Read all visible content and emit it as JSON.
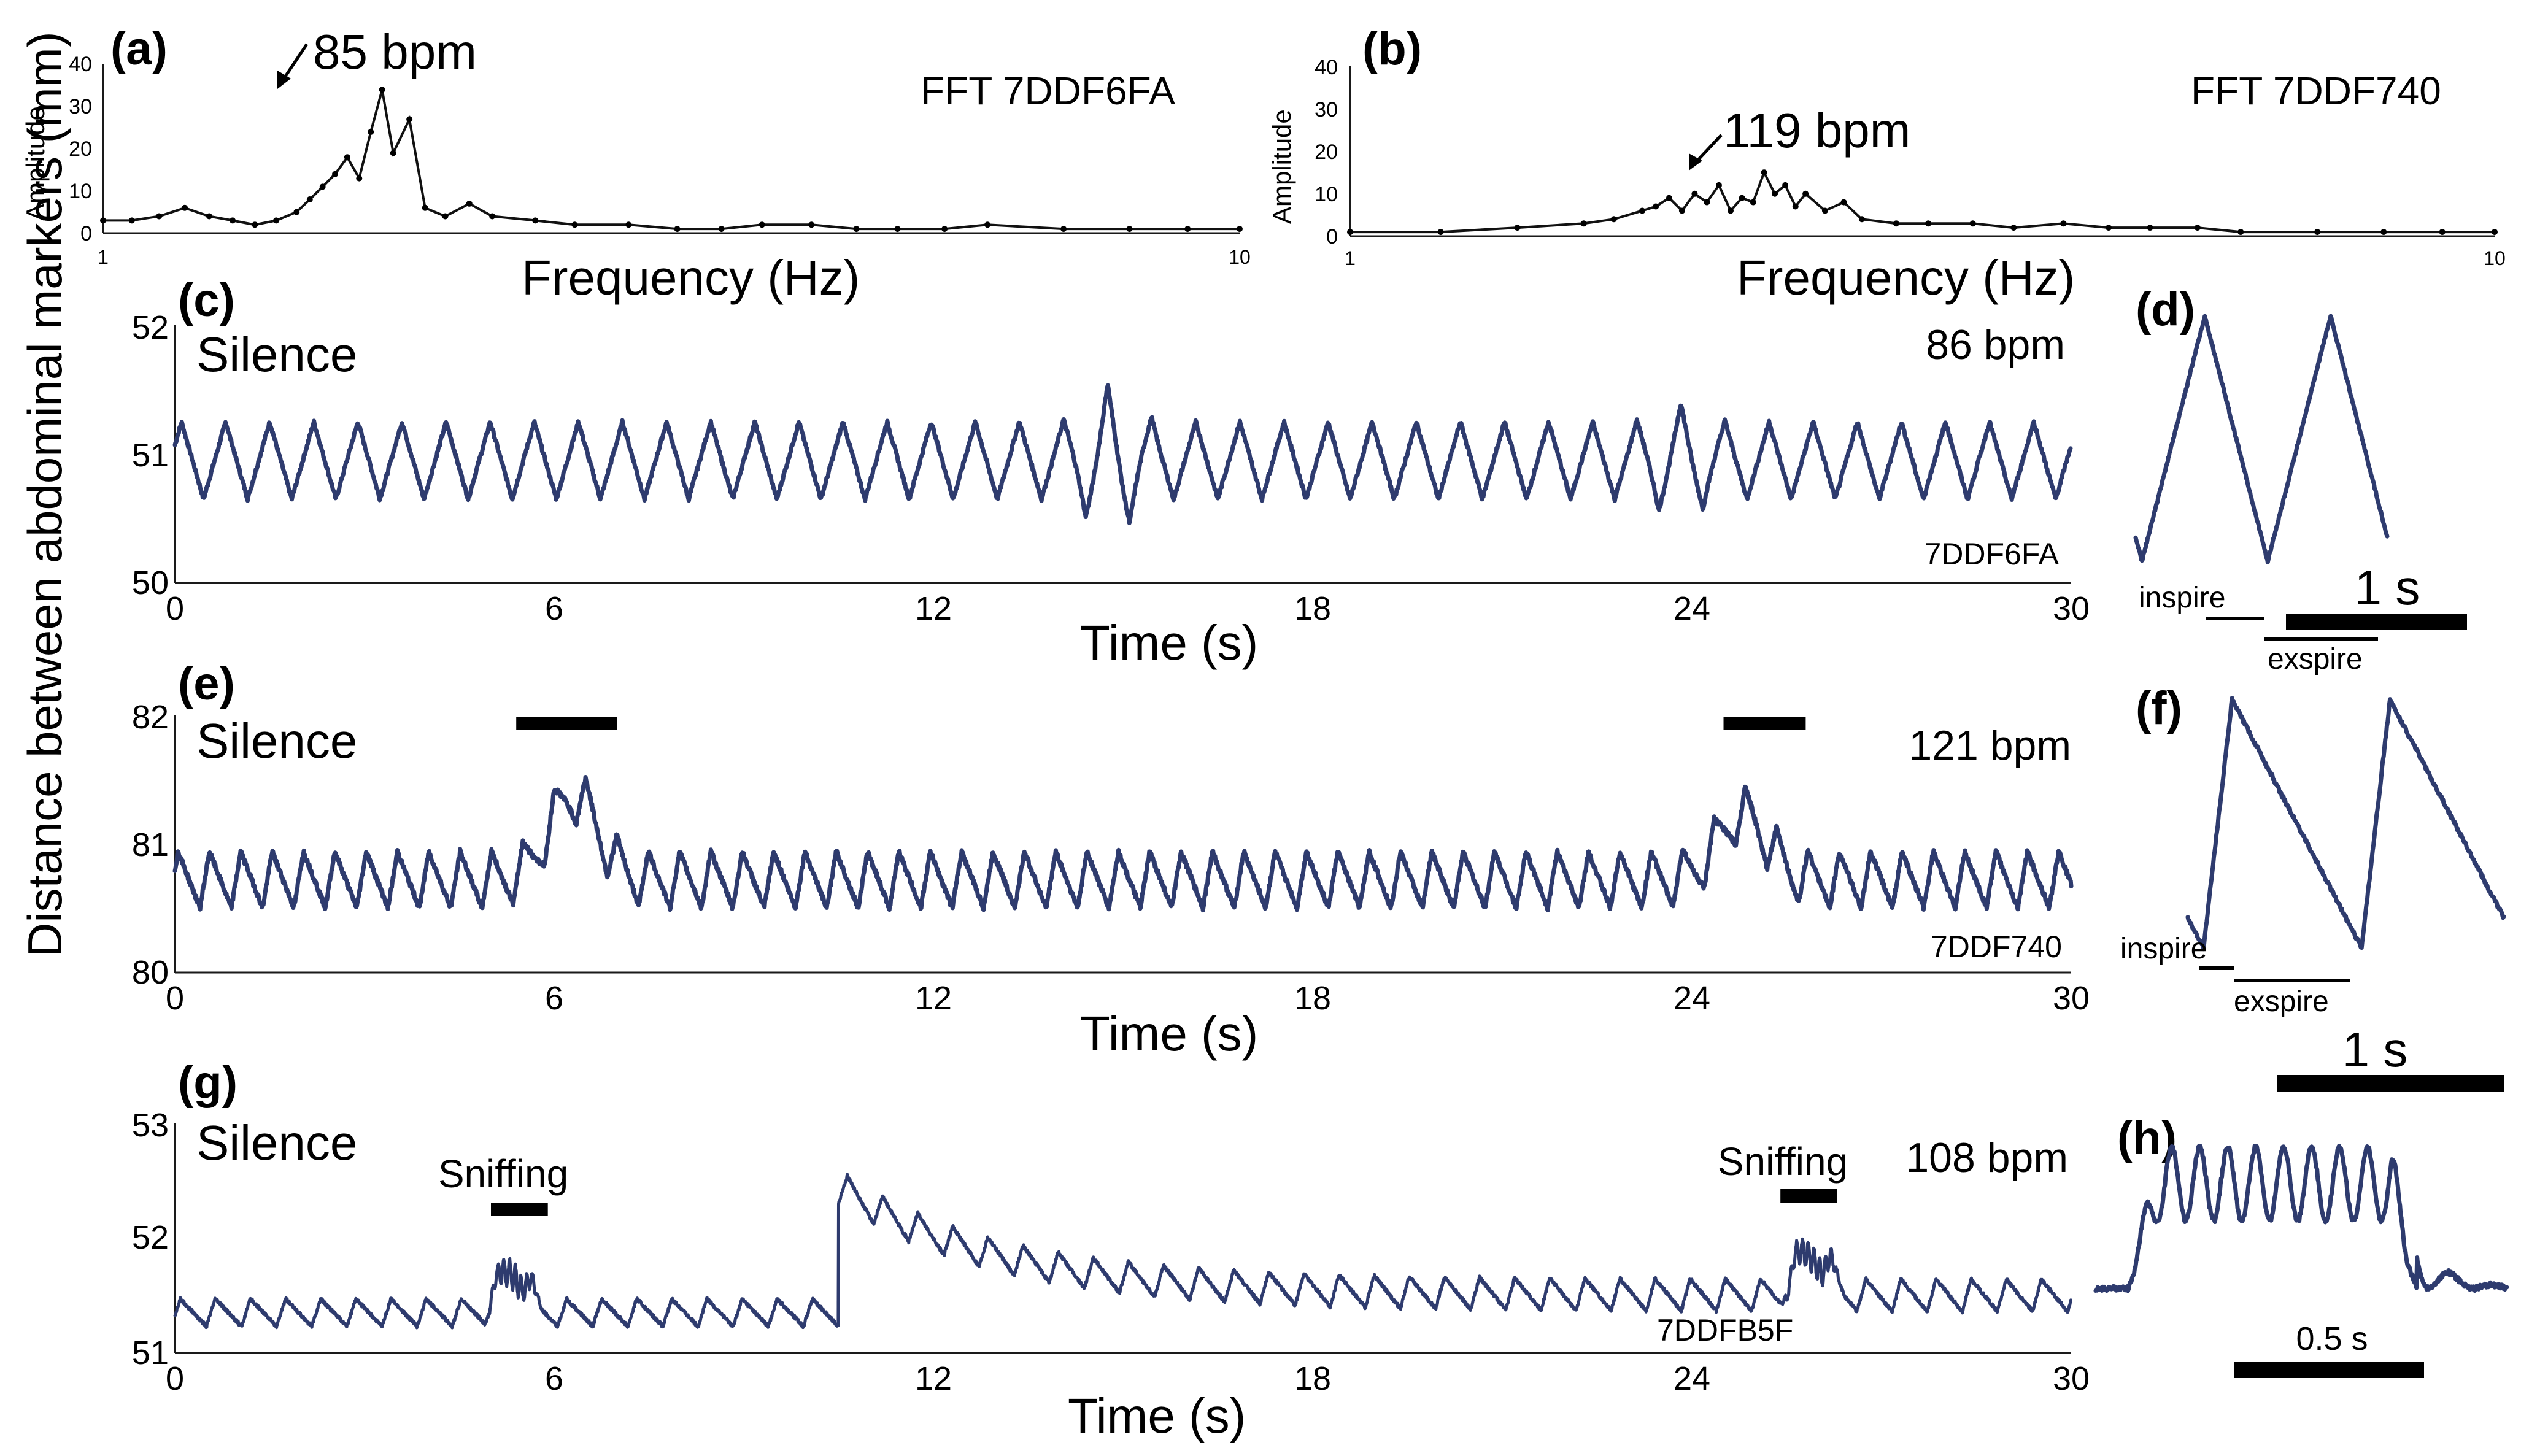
{
  "figure": {
    "ylabel_shared": "Distance between abdominal markers (mm)"
  },
  "chart_data": [
    {
      "panel": "(a)",
      "type": "line",
      "title": "FFT 7DDF6FA",
      "xlabel": "Frequency (Hz)",
      "ylabel": "Amplitude",
      "xscale": "log",
      "xlim": [
        1,
        10
      ],
      "ylim": [
        0,
        40
      ],
      "xticks": [
        "1",
        "10"
      ],
      "yticks": [
        "0",
        "10",
        "20",
        "30",
        "40"
      ],
      "annotation": "85 bpm",
      "x": [
        1.0,
        1.06,
        1.12,
        1.18,
        1.24,
        1.3,
        1.36,
        1.42,
        1.48,
        1.52,
        1.56,
        1.6,
        1.64,
        1.68,
        1.72,
        1.76,
        1.8,
        1.86,
        1.92,
        2.0,
        2.1,
        2.2,
        2.4,
        2.6,
        2.9,
        3.2,
        3.5,
        3.8,
        4.2,
        4.6,
        5.0,
        5.5,
        6.0,
        7.0,
        8.0,
        9.0,
        10.0
      ],
      "y": [
        3,
        3,
        4,
        6,
        4,
        3,
        2,
        3,
        5,
        8,
        11,
        14,
        18,
        13,
        24,
        34,
        19,
        27,
        6,
        4,
        7,
        4,
        3,
        2,
        2,
        1,
        1,
        2,
        2,
        1,
        1,
        1,
        2,
        1,
        1,
        1,
        1
      ]
    },
    {
      "panel": "(b)",
      "type": "line",
      "title": "FFT 7DDF740",
      "xlabel": "Frequency (Hz)",
      "ylabel": "Amplitude",
      "xscale": "log",
      "xlim": [
        1,
        10
      ],
      "ylim": [
        0,
        40
      ],
      "xticks": [
        "1",
        "10"
      ],
      "yticks": [
        "0",
        "10",
        "20",
        "30",
        "40"
      ],
      "annotation": "119 bpm",
      "x": [
        1.0,
        1.2,
        1.4,
        1.6,
        1.7,
        1.8,
        1.85,
        1.9,
        1.95,
        2.0,
        2.05,
        2.1,
        2.15,
        2.2,
        2.25,
        2.3,
        2.35,
        2.4,
        2.45,
        2.5,
        2.6,
        2.7,
        2.8,
        3.0,
        3.2,
        3.5,
        3.8,
        4.2,
        4.6,
        5.0,
        5.5,
        6.0,
        7.0,
        8.0,
        9.0,
        10.0
      ],
      "y": [
        1,
        1,
        2,
        3,
        4,
        6,
        7,
        9,
        6,
        10,
        8,
        12,
        6,
        9,
        8,
        15,
        10,
        12,
        7,
        10,
        6,
        8,
        4,
        3,
        3,
        3,
        2,
        3,
        2,
        2,
        2,
        1,
        1,
        1,
        1,
        1
      ],
      "peak_bpm": 119
    },
    {
      "panel": "(c)",
      "type": "line",
      "label": "Silence",
      "rate": "86 bpm",
      "id": "7DDF6FA",
      "xlabel": "Time (s)",
      "xlim": [
        0,
        30
      ],
      "ylim": [
        50,
        52
      ],
      "xticks": [
        "0",
        "6",
        "12",
        "18",
        "24",
        "30"
      ],
      "yticks": [
        "50",
        "51",
        "52"
      ],
      "rate_bpm": 86,
      "baseline": 50.95,
      "amplitude": 0.3,
      "emphasis": [
        [
          14.8,
          0.3
        ],
        [
          23.8,
          0.15
        ]
      ]
    },
    {
      "panel": "(d)",
      "type": "line",
      "scalebar": "1 s",
      "phase_labels": [
        "inspire",
        "exspire"
      ],
      "cycles": 2,
      "duration_s": 1.5
    },
    {
      "panel": "(e)",
      "type": "line",
      "label": "Silence",
      "rate": "121 bpm",
      "id": "7DDF740",
      "xlabel": "Time (s)",
      "xlim": [
        0,
        30
      ],
      "ylim": [
        80,
        82
      ],
      "xticks": [
        "0",
        "6",
        "12",
        "18",
        "24",
        "30"
      ],
      "yticks": [
        "80",
        "81",
        "82"
      ],
      "rate_bpm": 121,
      "baseline": 80.72,
      "amplitude": 0.22,
      "bumps": [
        [
          6.3,
          0.65
        ],
        [
          24.8,
          0.5
        ]
      ],
      "marker_bars_s": [
        [
          5.4,
          7.0
        ],
        [
          24.5,
          25.8
        ]
      ]
    },
    {
      "panel": "(f)",
      "type": "line",
      "scalebar": "1 s",
      "phase_labels": [
        "inspire",
        "exspire"
      ],
      "cycles": 2,
      "duration_s": 1.4
    },
    {
      "panel": "(g)",
      "type": "line",
      "label": "Silence",
      "rate": "108 bpm",
      "id": "7DDFB5F",
      "xlabel": "Time (s)",
      "xlim": [
        0,
        30
      ],
      "ylim": [
        51,
        53
      ],
      "xticks": [
        "0",
        "6",
        "12",
        "18",
        "24",
        "30"
      ],
      "yticks": [
        "51",
        "52",
        "53"
      ],
      "rate_bpm": 108,
      "event_labels": [
        "Sniffing",
        "Sniffing"
      ],
      "sniff_windows_s": [
        [
          4.9,
          5.8
        ],
        [
          25.4,
          26.4
        ]
      ],
      "baseline_step": {
        "at_s": 10.5,
        "from": 51.35,
        "to": 52.45,
        "decay_to": 51.5
      }
    },
    {
      "panel": "(h)",
      "type": "line",
      "scalebar": "0.5 s",
      "cycles": 10
    }
  ]
}
